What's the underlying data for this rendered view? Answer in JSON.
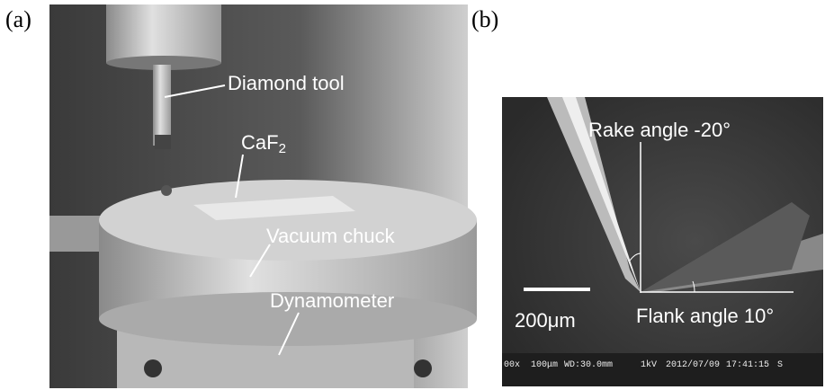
{
  "panel_a": {
    "label": "(a)",
    "annotations": [
      "Diamond tool",
      {
        "text": "CaF",
        "subscript": "2"
      },
      "Vacuum chuck",
      "Dynamometer"
    ]
  },
  "panel_b": {
    "label": "(b)",
    "annotations": [
      "Rake angle -20°",
      "Flank angle 10°"
    ],
    "scale_bar": "200μm",
    "footer": [
      "00x",
      "100μm",
      "WD:30.0mm",
      "1kV",
      "2012/07/09",
      "17:41:15",
      "S"
    ]
  }
}
